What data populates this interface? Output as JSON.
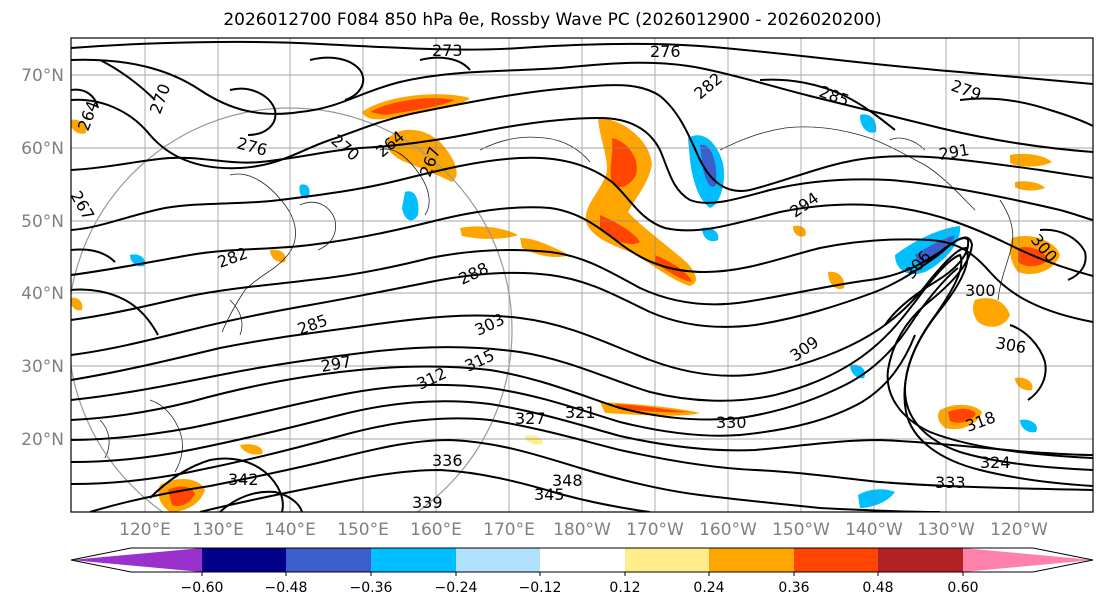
{
  "title": "2026012700 F084 850 hPa θe, Rossby Wave PC (2026012900 - 2026020200)",
  "lat_labels": [
    "70°N",
    "60°N",
    "50°N",
    "40°N",
    "30°N",
    "20°N"
  ],
  "lon_labels": [
    "120°E",
    "130°E",
    "140°E",
    "150°E",
    "160°E",
    "170°E",
    "180°W",
    "170°W",
    "160°W",
    "150°W",
    "140°W",
    "130°W",
    "120°W"
  ],
  "colorbar": {
    "colors": [
      "#9932cc",
      "#00008b",
      "#3a5fcd",
      "#00bfff",
      "#b0e2ff",
      "#ffffff",
      "#ffec8b",
      "#ffa500",
      "#ff4500",
      "#b22222",
      "#ff82ab"
    ],
    "ticks": [
      "−0.60",
      "−0.48",
      "−0.36",
      "−0.24",
      "−0.12",
      "0.12",
      "0.24",
      "0.36",
      "0.48",
      "0.60"
    ]
  },
  "contour_labels": [
    "273",
    "276",
    "279",
    "282",
    "285",
    "264",
    "270",
    "276",
    "267",
    "270",
    "264",
    "267",
    "282",
    "285",
    "288",
    "291",
    "294",
    "297",
    "303",
    "300",
    "306",
    "309",
    "312",
    "315",
    "318",
    "321",
    "324",
    "327",
    "330",
    "333",
    "336",
    "339",
    "342",
    "345",
    "348",
    "306",
    "300"
  ]
}
